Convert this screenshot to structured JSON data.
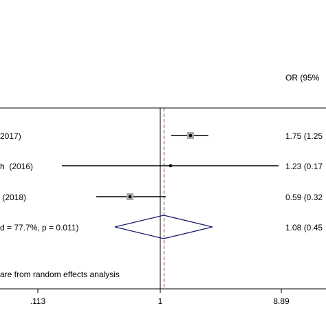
{
  "chart_data": {
    "type": "forest",
    "or_column_header": "OR (95%",
    "studies": [
      {
        "label": "2017)",
        "or": 1.75,
        "ci_text": "1.75 (1.25"
      },
      {
        "label": "h  (2016)",
        "or": 1.23,
        "ci_text": "1.23 (0.17"
      },
      {
        "label": " (2018)",
        "or": 0.59,
        "ci_text": "0.59 (0.32"
      }
    ],
    "overall": {
      "label": "d = 77.7%, p = 0.011)",
      "or": 1.08,
      "ci_text": "1.08 (0.45"
    },
    "footnote": "are from random effects analysis",
    "x_ticks": [
      {
        "value": 0.113,
        "label": ".113"
      },
      {
        "value": 1,
        "label": "1"
      },
      {
        "value": 8.89,
        "label": "8.89"
      }
    ],
    "x_scale": "log",
    "reference_value": 1,
    "colors": {
      "line": "#000000",
      "diamond": "#1a1a6e",
      "overall_line": "#8b1a1a",
      "box": "#a9a9a9"
    }
  }
}
